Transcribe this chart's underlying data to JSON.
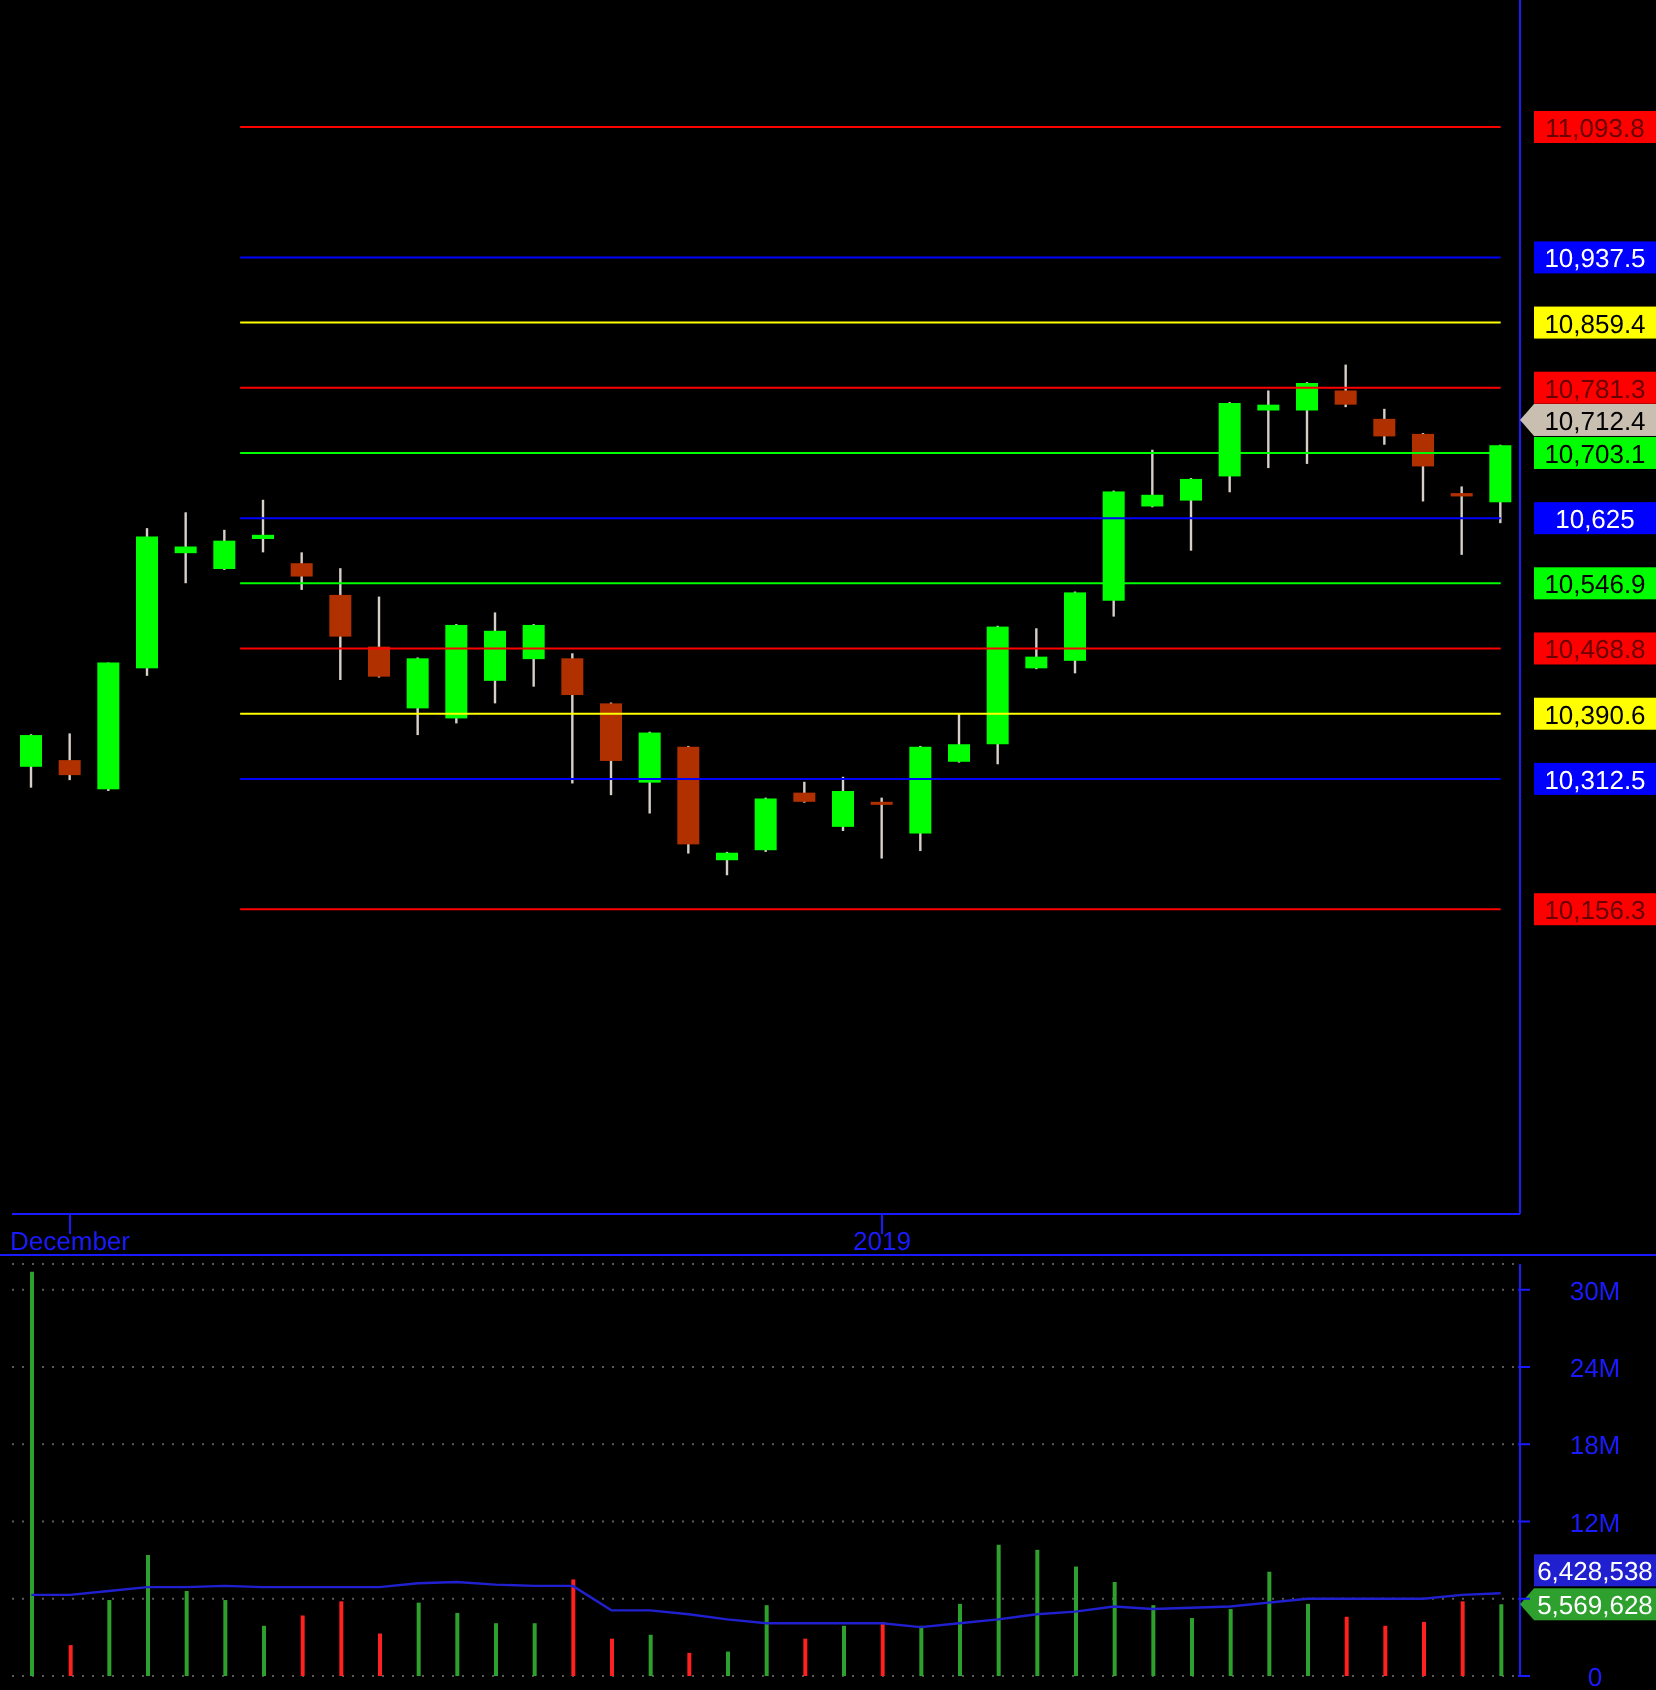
{
  "chart_data": [
    {
      "type": "candlestick",
      "categories": [
        null,
        "December",
        null,
        null,
        null,
        null,
        null,
        null,
        null,
        null,
        null,
        null,
        null,
        null,
        null,
        null,
        null,
        null,
        null,
        null,
        null,
        null,
        "2019",
        null,
        null,
        null,
        null,
        null,
        null,
        null,
        null,
        null,
        null,
        null,
        null,
        null,
        null,
        null,
        null
      ],
      "ohlc": [
        [
          10327,
          10366,
          10302,
          10365
        ],
        [
          10335,
          10367,
          10311,
          10317
        ],
        [
          10300,
          10452,
          10298,
          10452
        ],
        [
          10445,
          10613,
          10436,
          10603
        ],
        [
          10583,
          10632,
          10547,
          10591
        ],
        [
          10564,
          10611,
          10563,
          10598
        ],
        [
          10600,
          10647,
          10584,
          10605
        ],
        [
          10571,
          10584,
          10539,
          10555
        ],
        [
          10533,
          10565,
          10431,
          10483
        ],
        [
          10471,
          10531,
          10434,
          10435
        ],
        [
          10397,
          10458,
          10365,
          10457
        ],
        [
          10385,
          10498,
          10379,
          10497
        ],
        [
          10430,
          10512,
          10403,
          10490
        ],
        [
          10456,
          10498,
          10423,
          10497
        ],
        [
          10457,
          10463,
          10307,
          10413
        ],
        [
          10403,
          10404,
          10293,
          10334
        ],
        [
          10308,
          10369,
          10271,
          10368
        ],
        [
          10351,
          10352,
          10223,
          10234
        ],
        [
          10215,
          10225,
          10197,
          10224
        ],
        [
          10227,
          10290,
          10225,
          10289
        ],
        [
          10296,
          10309,
          10284,
          10285
        ],
        [
          10255,
          10315,
          10250,
          10298
        ],
        [
          10285,
          10290,
          10217,
          10284
        ],
        [
          10247,
          10352,
          10226,
          10351
        ],
        [
          10333,
          10391,
          10332,
          10354
        ],
        [
          10354,
          10496,
          10330,
          10495
        ],
        [
          10445,
          10493,
          10444,
          10459
        ],
        [
          10454,
          10537,
          10439,
          10536
        ],
        [
          10526,
          10658,
          10507,
          10657
        ],
        [
          10639,
          10707,
          10638,
          10653
        ],
        [
          10646,
          10673,
          10586,
          10672
        ],
        [
          10675,
          10764,
          10656,
          10763
        ],
        [
          10754,
          10778,
          10685,
          10761
        ],
        [
          10754,
          10788,
          10690,
          10787
        ],
        [
          10778,
          10809,
          10758,
          10761
        ],
        [
          10744,
          10756,
          10713,
          10723
        ],
        [
          10726,
          10727,
          10645,
          10687
        ],
        [
          10655,
          10663,
          10581,
          10651
        ],
        [
          10644,
          10713,
          10619,
          10712.4
        ]
      ],
      "ylim": [
        9791,
        11246
      ],
      "yticks": [
        {
          "value": 11093.8,
          "label": "11,093.8"
        },
        {
          "value": 10937.5,
          "label": "10,937.5"
        },
        {
          "value": 10859.4,
          "label": "10,859.4"
        },
        {
          "value": 10781.3,
          "label": "10,781.3"
        },
        {
          "value": 10703.1,
          "label": "10,703.1"
        },
        {
          "value": 10625,
          "label": "10,625"
        },
        {
          "value": 10546.9,
          "label": "10,546.9"
        },
        {
          "value": 10468.8,
          "label": "10,468.8"
        },
        {
          "value": 10390.6,
          "label": "10,390.6"
        },
        {
          "value": 10312.5,
          "label": "10,312.5"
        },
        {
          "value": 10156.3,
          "label": "10,156.3"
        }
      ],
      "ref_lines": [
        {
          "axis": "y",
          "value": 11093.8,
          "color": "#ff0000"
        },
        {
          "axis": "y",
          "value": 10937.5,
          "color": "#0000ff"
        },
        {
          "axis": "y",
          "value": 10859.4,
          "color": "#ffff00"
        },
        {
          "axis": "y",
          "value": 10781.3,
          "color": "#ff0000"
        },
        {
          "axis": "y",
          "value": 10703.1,
          "color": "#00ff00"
        },
        {
          "axis": "y",
          "value": 10625,
          "color": "#0000ff"
        },
        {
          "axis": "y",
          "value": 10546.9,
          "color": "#00ff00"
        },
        {
          "axis": "y",
          "value": 10468.8,
          "color": "#ff0000"
        },
        {
          "axis": "y",
          "value": 10390.6,
          "color": "#ffff00"
        },
        {
          "axis": "y",
          "value": 10312.5,
          "color": "#0000ff"
        },
        {
          "axis": "y",
          "value": 10156.3,
          "color": "#ff0000"
        }
      ],
      "annotations": [
        "10,712.4"
      ]
    },
    {
      "type": "bar",
      "categories": [
        null,
        null,
        null,
        null,
        null,
        null,
        null,
        null,
        null,
        null,
        null,
        null,
        null,
        null,
        null,
        null,
        null,
        null,
        null,
        null,
        null,
        null,
        null,
        null,
        null,
        null,
        null,
        null,
        null,
        null,
        null,
        null,
        null,
        null,
        null,
        null,
        null,
        null,
        null
      ],
      "series": [
        {
          "colors": [
            "#2ea02e",
            "#ff2020",
            "#2ea02e",
            "#2ea02e",
            "#2ea02e",
            "#2ea02e",
            "#2ea02e",
            "#ff2020",
            "#ff2020",
            "#ff2020",
            "#2ea02e",
            "#2ea02e",
            "#2ea02e",
            "#2ea02e",
            "#ff2020",
            "#ff2020",
            "#2ea02e",
            "#ff2020",
            "#2ea02e",
            "#2ea02e",
            "#ff2020",
            "#2ea02e",
            "#ff2020",
            "#2ea02e",
            "#2ea02e",
            "#2ea02e",
            "#2ea02e",
            "#2ea02e",
            "#2ea02e",
            "#2ea02e",
            "#2ea02e",
            "#2ea02e",
            "#2ea02e",
            "#2ea02e",
            "#ff2020",
            "#ff2020",
            "#ff2020",
            "#ff2020",
            "#2ea02e"
          ],
          "values": [
            31400000,
            2400000,
            5900000,
            9400000,
            6600000,
            5900000,
            3900000,
            4700000,
            5800000,
            3300000,
            5700000,
            4900000,
            4100000,
            4100000,
            7500000,
            2900000,
            3200000,
            1800000,
            1900000,
            5500000,
            2900000,
            3900000,
            4200000,
            3900000,
            5600000,
            10200000,
            9800000,
            8500000,
            7300000,
            5500000,
            4500000,
            5200000,
            8100000,
            5600000,
            4600000,
            3900000,
            4200000,
            5800000,
            5569628
          ]
        },
        {
          "type": "line",
          "color": "#2020d0",
          "values": [
            6300000,
            6300000,
            6600000,
            6900000,
            6900000,
            7000000,
            6900000,
            6900000,
            6900000,
            6900000,
            7200000,
            7300000,
            7100000,
            7000000,
            7000000,
            5100000,
            5100000,
            4800000,
            4400000,
            4100000,
            4100000,
            4100000,
            4100000,
            3800000,
            4100000,
            4400000,
            4800000,
            5000000,
            5400000,
            5200000,
            5300000,
            5400000,
            5700000,
            6000000,
            6000000,
            6000000,
            6000000,
            6300000,
            6428538
          ]
        }
      ],
      "ylim": [
        0,
        32000000
      ],
      "yticks": [
        0,
        {
          "value": 6000000,
          "label": null
        },
        {
          "value": 12000000,
          "label": "12M"
        },
        {
          "value": 18000000,
          "label": "18M"
        },
        {
          "value": 24000000,
          "label": "24M"
        },
        {
          "value": 30000000,
          "label": "30M"
        }
      ],
      "grid": "y",
      "tick_labels": "y",
      "marker": "none",
      "annotations": [
        "5,569,628",
        "6,428,538"
      ]
    }
  ]
}
